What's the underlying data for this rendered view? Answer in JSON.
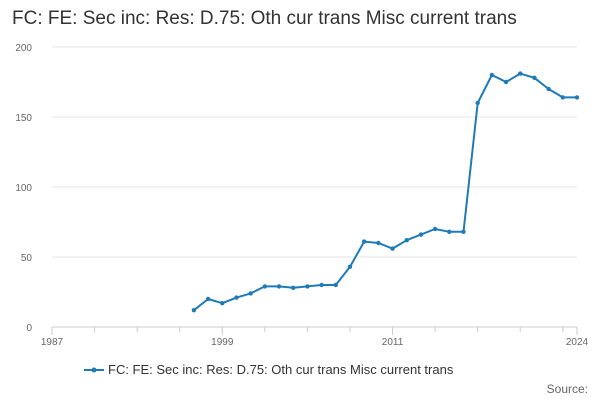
{
  "chart_data": {
    "type": "line",
    "title": "FC: FE: Sec inc: Res: D.75: Oth cur trans Misc current trans",
    "xlabel": "",
    "ylabel": "",
    "xlim": [
      1987,
      2024
    ],
    "ylim": [
      0,
      200
    ],
    "x_ticks": [
      "1987",
      "1999",
      "2011",
      "2024"
    ],
    "y_ticks": [
      "0",
      "50",
      "100",
      "150",
      "200"
    ],
    "legend_position": "bottom",
    "grid": true,
    "color": "#1f7ab8",
    "series": [
      {
        "name": "FC: FE: Sec inc: Res: D.75: Oth cur trans Misc current trans",
        "x": [
          1997,
          1998,
          1999,
          2000,
          2001,
          2002,
          2003,
          2004,
          2005,
          2006,
          2007,
          2008,
          2009,
          2010,
          2011,
          2012,
          2013,
          2014,
          2015,
          2016,
          2017,
          2018,
          2019,
          2020,
          2021,
          2022,
          2023,
          2024
        ],
        "y": [
          12,
          20,
          17,
          21,
          24,
          29,
          29,
          28,
          29,
          30,
          30,
          43,
          61,
          60,
          56,
          62,
          66,
          70,
          68,
          68,
          160,
          180,
          175,
          181,
          178,
          170,
          164,
          164
        ]
      }
    ]
  },
  "source_label": "Source:"
}
